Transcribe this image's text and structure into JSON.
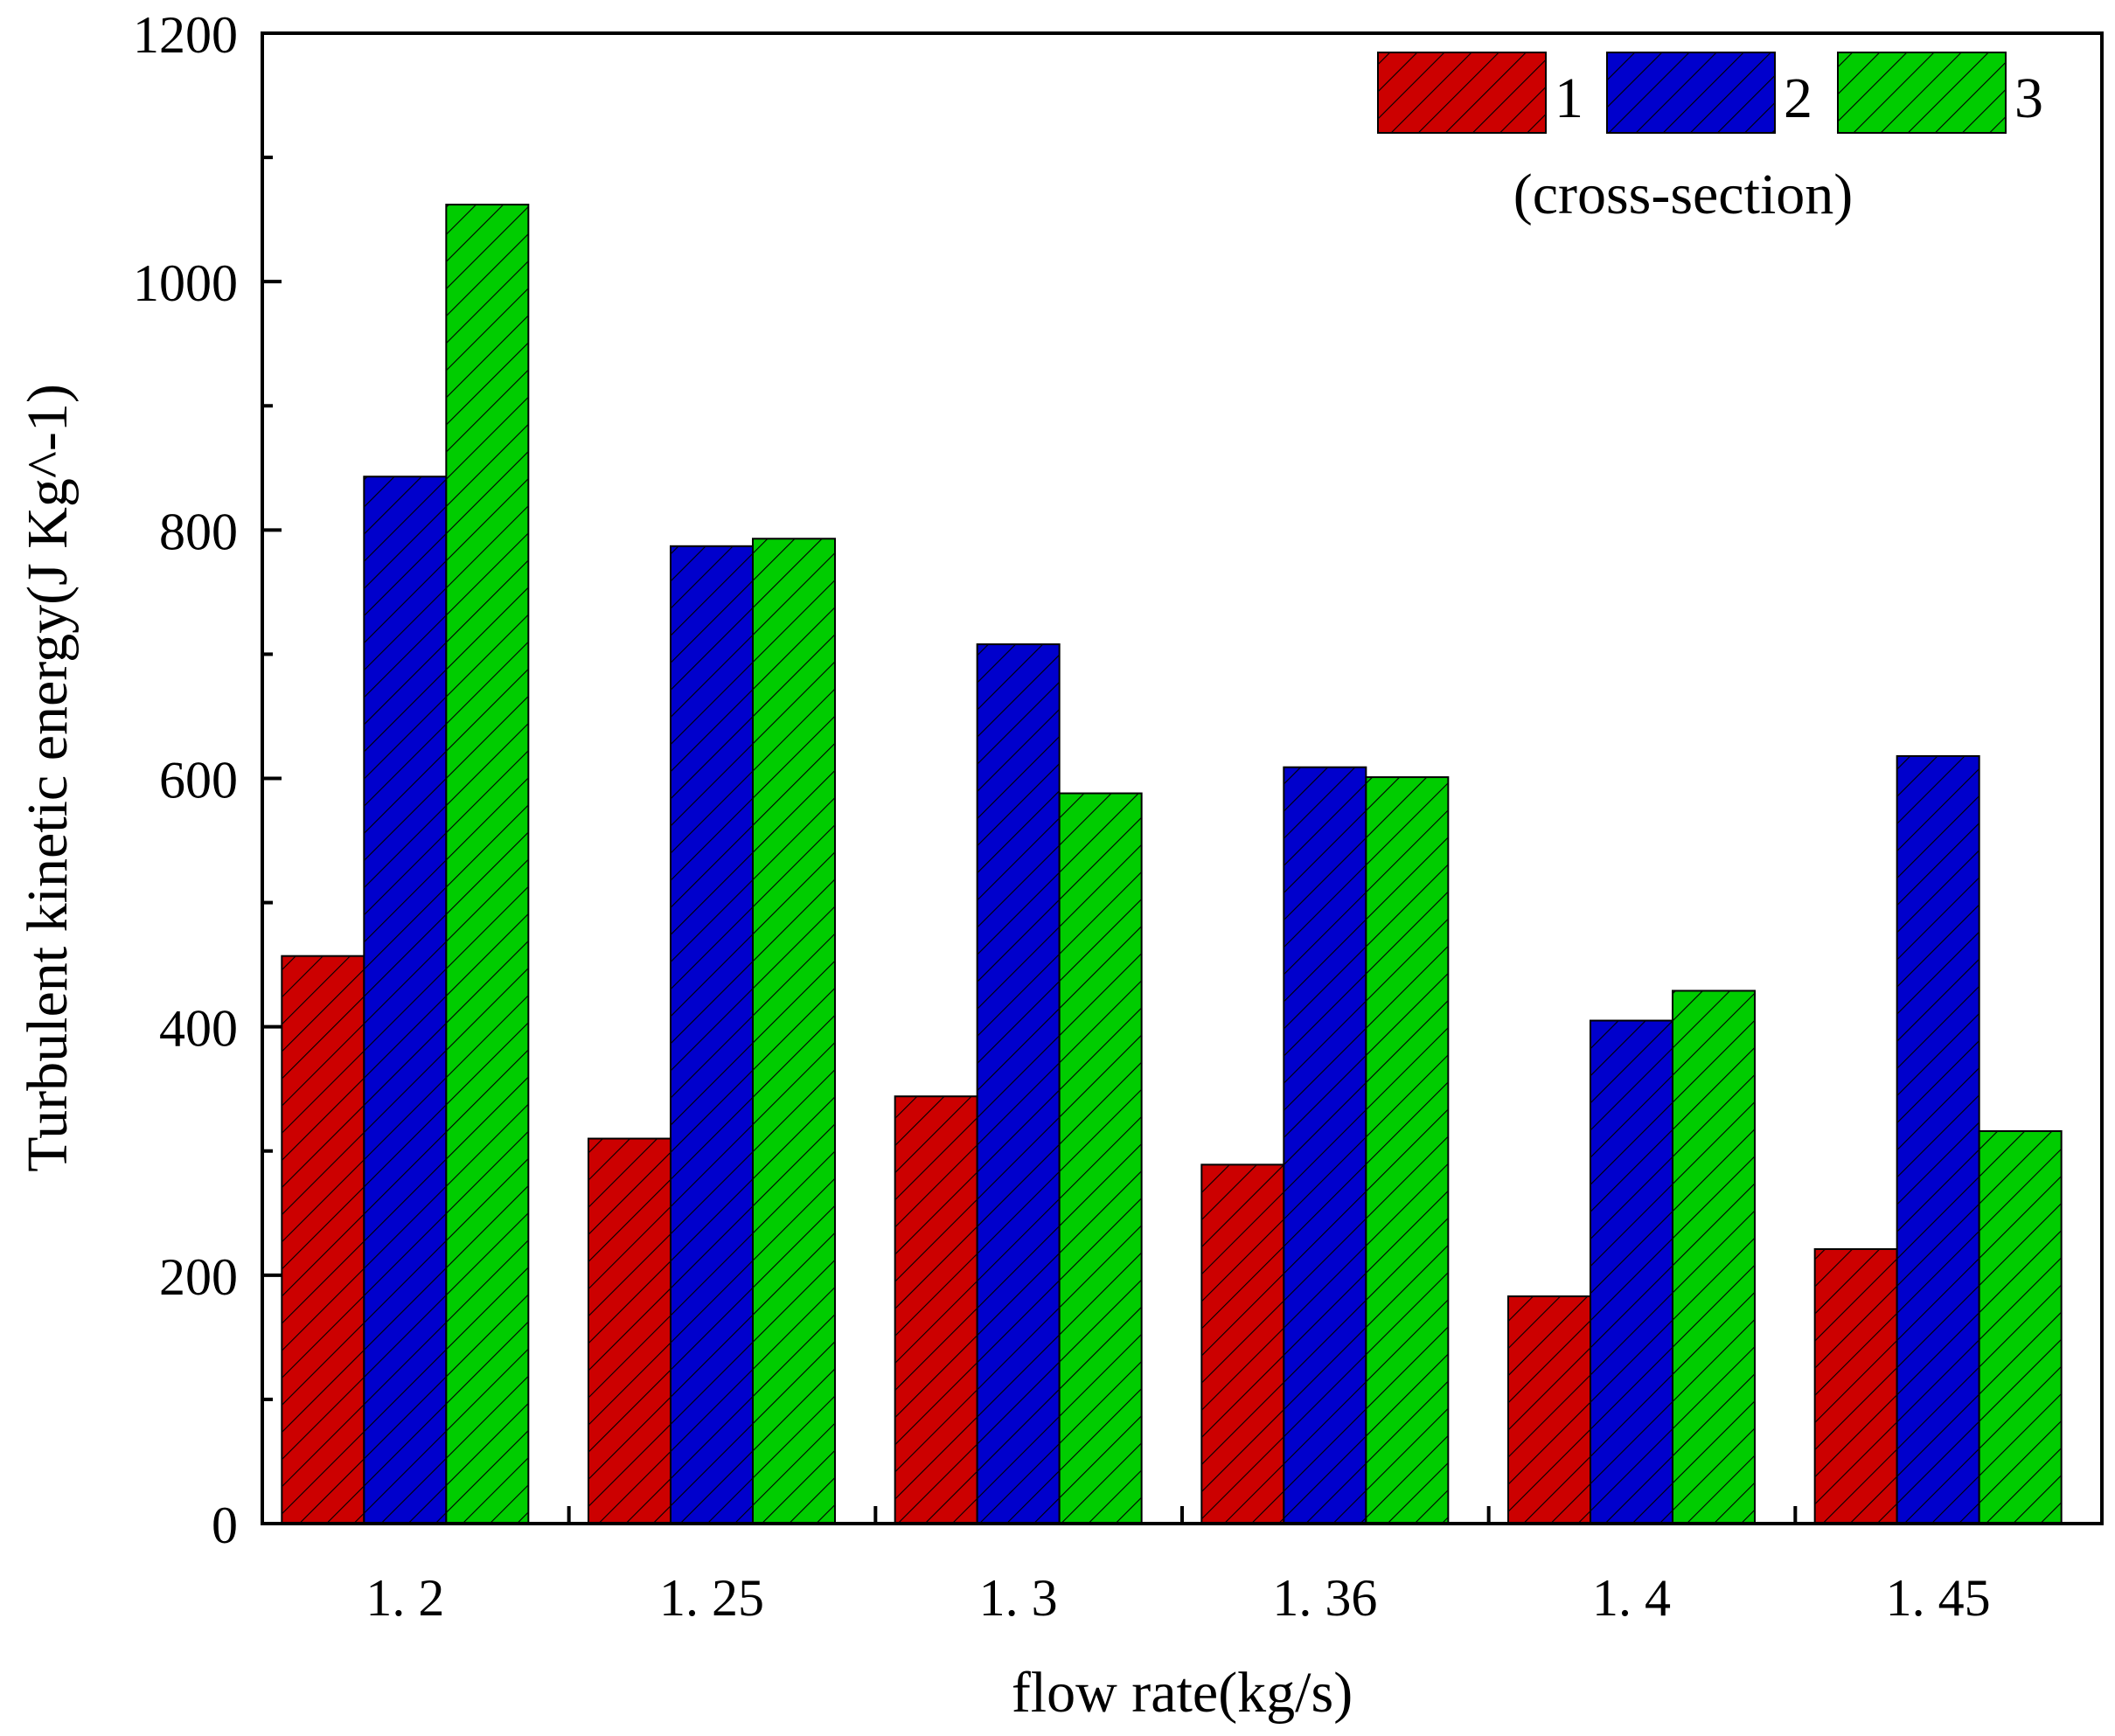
{
  "chart_data": {
    "type": "bar",
    "title": "",
    "xlabel": "flow rate(kg/s)",
    "ylabel": "Turbulent kinetic energy(J Kg^-1)",
    "categories": [
      "1. 2",
      "1. 25",
      "1. 3",
      "1. 36",
      "1. 4",
      "1. 45"
    ],
    "ylim": [
      0,
      1200
    ],
    "yticks": [
      0,
      200,
      400,
      600,
      800,
      1000,
      1200
    ],
    "yminor": [
      100,
      300,
      500,
      700,
      900,
      1100
    ],
    "grid": false,
    "legend_position": "top-right",
    "legend_title": "(cross-section)",
    "series": [
      {
        "name": "1",
        "color": "#cc0000",
        "values": [
          457,
          310,
          344,
          289,
          183,
          221
        ]
      },
      {
        "name": "2",
        "color": "#0000cc",
        "values": [
          843,
          787,
          708,
          609,
          405,
          618
        ]
      },
      {
        "name": "3",
        "color": "#00cc00",
        "values": [
          1062,
          793,
          588,
          601,
          429,
          316
        ]
      }
    ]
  }
}
